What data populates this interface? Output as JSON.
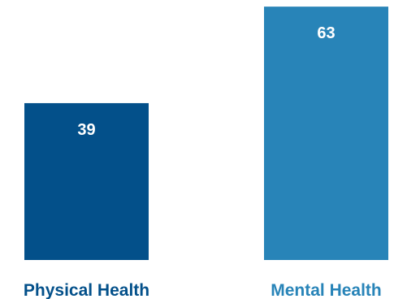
{
  "chart_data": {
    "type": "bar",
    "categories": [
      "Physical Health",
      "Mental Health"
    ],
    "values": [
      39,
      63
    ],
    "value_labels": [
      "39",
      "63"
    ],
    "title": "",
    "xlabel": "",
    "ylabel": "",
    "grid": false,
    "colors": {
      "bars": [
        "#03508A",
        "#2884B8"
      ],
      "labels": [
        "#03508A",
        "#2884B8"
      ],
      "value_text": "#FFFFFF"
    }
  }
}
